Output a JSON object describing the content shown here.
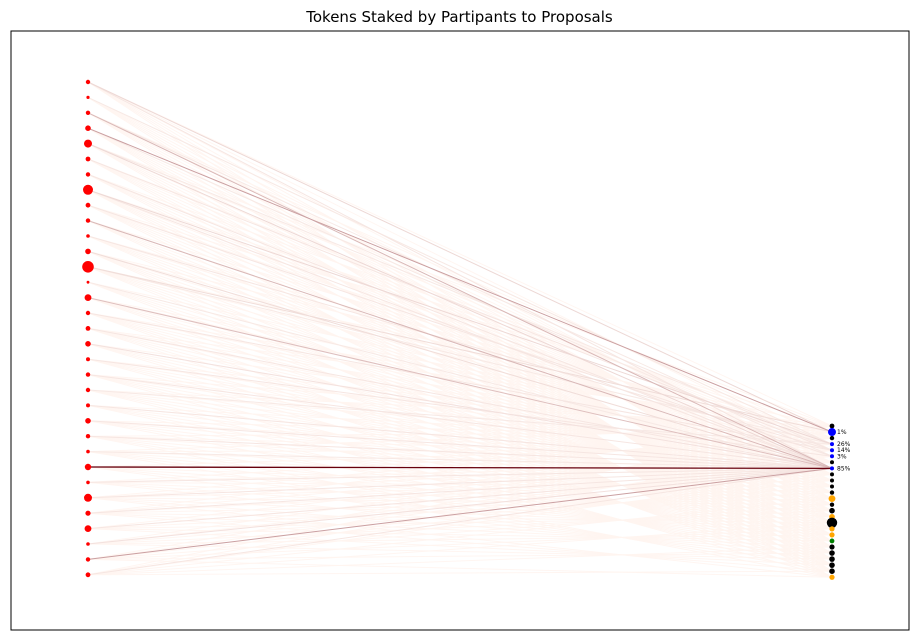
{
  "chart_data": {
    "type": "network",
    "title": "Tokens Staked by Partipants to Proposals",
    "xlabel": "",
    "ylabel": "",
    "grid": false,
    "participants": [
      {
        "id": 0,
        "size": 0.3
      },
      {
        "id": 1,
        "size": 0.15
      },
      {
        "id": 2,
        "size": 0.3
      },
      {
        "id": 3,
        "size": 0.45
      },
      {
        "id": 4,
        "size": 0.75
      },
      {
        "id": 5,
        "size": 0.35
      },
      {
        "id": 6,
        "size": 0.3
      },
      {
        "id": 7,
        "size": 1.0
      },
      {
        "id": 8,
        "size": 0.35
      },
      {
        "id": 9,
        "size": 0.3
      },
      {
        "id": 10,
        "size": 0.2
      },
      {
        "id": 11,
        "size": 0.45
      },
      {
        "id": 12,
        "size": 1.2
      },
      {
        "id": 13,
        "size": 0.1
      },
      {
        "id": 14,
        "size": 0.6
      },
      {
        "id": 15,
        "size": 0.3
      },
      {
        "id": 16,
        "size": 0.35
      },
      {
        "id": 17,
        "size": 0.45
      },
      {
        "id": 18,
        "size": 0.25
      },
      {
        "id": 19,
        "size": 0.3
      },
      {
        "id": 20,
        "size": 0.3
      },
      {
        "id": 21,
        "size": 0.25
      },
      {
        "id": 22,
        "size": 0.45
      },
      {
        "id": 23,
        "size": 0.3
      },
      {
        "id": 24,
        "size": 0.2
      },
      {
        "id": 25,
        "size": 0.55
      },
      {
        "id": 26,
        "size": 0.2
      },
      {
        "id": 27,
        "size": 0.75
      },
      {
        "id": 28,
        "size": 0.4
      },
      {
        "id": 29,
        "size": 0.6
      },
      {
        "id": 30,
        "size": 0.2
      },
      {
        "id": 31,
        "size": 0.3
      },
      {
        "id": 32,
        "size": 0.35
      }
    ],
    "proposals": [
      {
        "id": 0,
        "status": "black",
        "size": 0.3
      },
      {
        "id": 1,
        "status": "blue",
        "size": 0.7,
        "label": "1%"
      },
      {
        "id": 2,
        "status": "black",
        "size": 0.25
      },
      {
        "id": 3,
        "status": "blue",
        "size": 0.2,
        "label": "26%"
      },
      {
        "id": 4,
        "status": "blue",
        "size": 0.2,
        "label": "14%"
      },
      {
        "id": 5,
        "status": "blue",
        "size": 0.2,
        "label": "3%"
      },
      {
        "id": 6,
        "status": "black",
        "size": 0.2
      },
      {
        "id": 7,
        "status": "blue",
        "size": 0.2,
        "label": "85%"
      },
      {
        "id": 8,
        "status": "black",
        "size": 0.2
      },
      {
        "id": 9,
        "status": "black",
        "size": 0.2
      },
      {
        "id": 10,
        "status": "black",
        "size": 0.2
      },
      {
        "id": 11,
        "status": "black",
        "size": 0.25
      },
      {
        "id": 12,
        "status": "orange",
        "size": 0.55
      },
      {
        "id": 13,
        "status": "black",
        "size": 0.25
      },
      {
        "id": 14,
        "status": "black",
        "size": 0.4
      },
      {
        "id": 15,
        "status": "orange",
        "size": 0.4
      },
      {
        "id": 16,
        "status": "black",
        "size": 1.0
      },
      {
        "id": 17,
        "status": "orange",
        "size": 0.35
      },
      {
        "id": 18,
        "status": "orange",
        "size": 0.35
      },
      {
        "id": 19,
        "status": "green",
        "size": 0.3
      },
      {
        "id": 20,
        "status": "black",
        "size": 0.35
      },
      {
        "id": 21,
        "status": "black",
        "size": 0.4
      },
      {
        "id": 22,
        "status": "black",
        "size": 0.4
      },
      {
        "id": 23,
        "status": "black",
        "size": 0.4
      },
      {
        "id": 24,
        "status": "black",
        "size": 0.4
      },
      {
        "id": 25,
        "status": "orange",
        "size": 0.35
      }
    ],
    "edges": [
      {
        "from": 0,
        "to": 1,
        "weight": 0.12
      },
      {
        "from": 0,
        "to": 7,
        "weight": 0.06
      },
      {
        "from": 1,
        "to": 3,
        "weight": 0.05
      },
      {
        "from": 2,
        "to": 7,
        "weight": 0.25
      },
      {
        "from": 2,
        "to": 4,
        "weight": 0.05
      },
      {
        "from": 3,
        "to": 1,
        "weight": 0.35
      },
      {
        "from": 3,
        "to": 5,
        "weight": 0.05
      },
      {
        "from": 4,
        "to": 7,
        "weight": 0.12
      },
      {
        "from": 4,
        "to": 3,
        "weight": 0.05
      },
      {
        "from": 5,
        "to": 4,
        "weight": 0.06
      },
      {
        "from": 6,
        "to": 7,
        "weight": 0.06
      },
      {
        "from": 7,
        "to": 3,
        "weight": 0.12
      },
      {
        "from": 7,
        "to": 7,
        "weight": 0.06
      },
      {
        "from": 8,
        "to": 5,
        "weight": 0.06
      },
      {
        "from": 9,
        "to": 7,
        "weight": 0.25
      },
      {
        "from": 10,
        "to": 4,
        "weight": 0.06
      },
      {
        "from": 11,
        "to": 7,
        "weight": 0.1
      },
      {
        "from": 12,
        "to": 1,
        "weight": 0.1
      },
      {
        "from": 12,
        "to": 3,
        "weight": 0.05
      },
      {
        "from": 13,
        "to": 7,
        "weight": 0.05
      },
      {
        "from": 14,
        "to": 7,
        "weight": 0.22
      },
      {
        "from": 15,
        "to": 4,
        "weight": 0.06
      },
      {
        "from": 16,
        "to": 7,
        "weight": 0.06
      },
      {
        "from": 17,
        "to": 7,
        "weight": 0.08
      },
      {
        "from": 18,
        "to": 5,
        "weight": 0.06
      },
      {
        "from": 19,
        "to": 7,
        "weight": 0.06
      },
      {
        "from": 20,
        "to": 3,
        "weight": 0.05
      },
      {
        "from": 21,
        "to": 7,
        "weight": 0.06
      },
      {
        "from": 22,
        "to": 7,
        "weight": 0.06
      },
      {
        "from": 23,
        "to": 7,
        "weight": 0.06
      },
      {
        "from": 24,
        "to": 7,
        "weight": 0.05
      },
      {
        "from": 25,
        "to": 7,
        "weight": 1.0
      },
      {
        "from": 26,
        "to": 7,
        "weight": 0.06
      },
      {
        "from": 27,
        "to": 7,
        "weight": 0.06
      },
      {
        "from": 28,
        "to": 7,
        "weight": 0.06
      },
      {
        "from": 29,
        "to": 7,
        "weight": 0.06
      },
      {
        "from": 30,
        "to": 7,
        "weight": 0.08
      },
      {
        "from": 31,
        "to": 7,
        "weight": 0.35
      },
      {
        "from": 32,
        "to": 7,
        "weight": 0.06
      }
    ],
    "colors": {
      "participant": "#ff0000",
      "blue": "#0000ff",
      "black": "#000000",
      "orange": "#ffa500",
      "green": "#008000",
      "edge_low": "#fff5f0",
      "edge_high": "#67000d"
    }
  }
}
